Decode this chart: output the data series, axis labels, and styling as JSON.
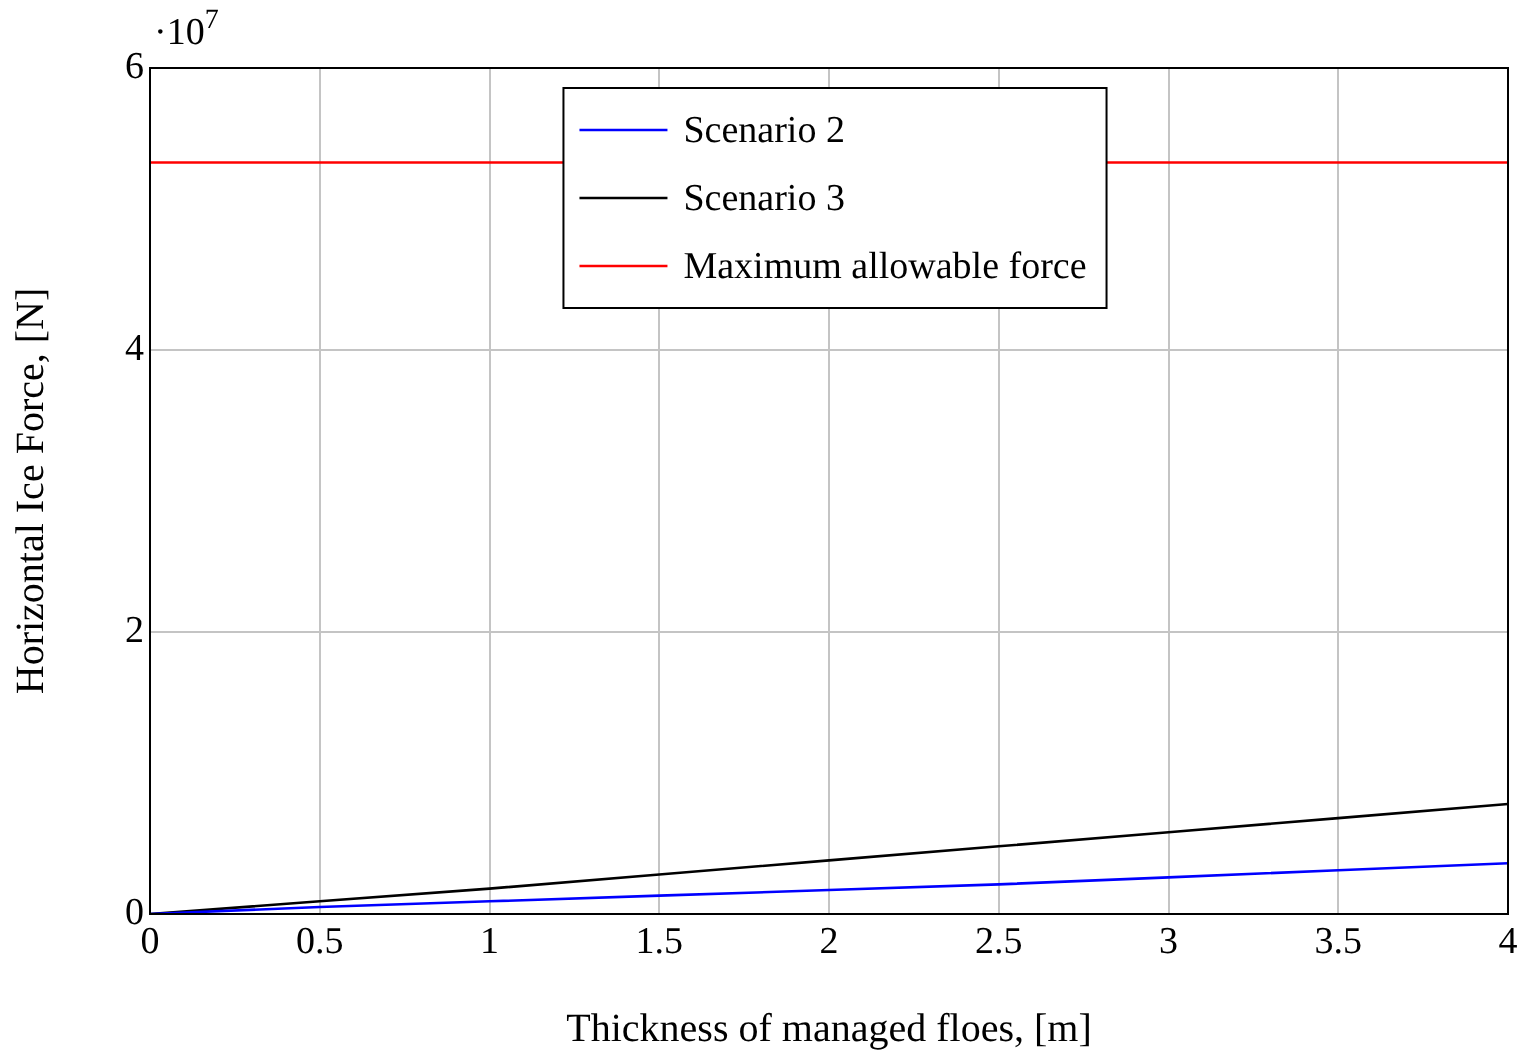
{
  "chart_data": {
    "type": "line",
    "xlabel": "Thickness of managed floes, [m]",
    "ylabel": "Horizontal Ice Force, [N]",
    "annotations": [
      "·10$^{7}$"
    ],
    "xlim": [
      0,
      4
    ],
    "xticks": [
      0,
      0.5,
      1,
      1.5,
      2,
      2.5,
      3,
      3.5,
      4
    ],
    "ylim": [
      0,
      6
    ],
    "yticks": [
      0,
      2,
      4,
      6
    ],
    "grid": true,
    "legend": "top",
    "marker": "none",
    "line_style": "solid",
    "series": [
      {
        "name": "Scenario 2",
        "color": "#0000ff",
        "x": [
          0,
          0.5,
          1,
          1.5,
          2,
          2.5,
          3,
          3.5,
          4
        ],
        "values": [
          0,
          0.05,
          0.09,
          0.13,
          0.17,
          0.21,
          0.26,
          0.31,
          0.36
        ]
      },
      {
        "name": "Scenario 3",
        "color": "#000000",
        "x": [
          0,
          0.5,
          1,
          1.5,
          2,
          2.5,
          3,
          3.5,
          4
        ],
        "values": [
          0,
          0.09,
          0.18,
          0.28,
          0.38,
          0.48,
          0.58,
          0.68,
          0.78
        ]
      },
      {
        "name": "Maximum allowable force",
        "color": "#ff0000",
        "x": [
          0,
          4
        ],
        "values": [
          5.33,
          5.33
        ]
      }
    ]
  }
}
